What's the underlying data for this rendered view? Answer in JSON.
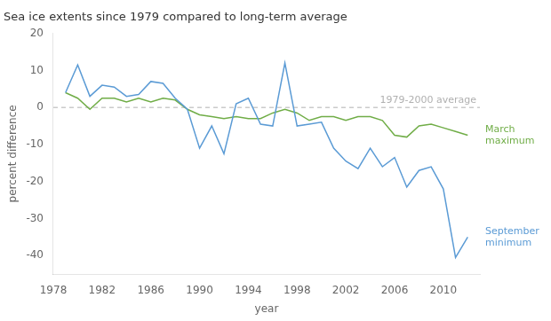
{
  "chart_data": {
    "type": "line",
    "title": "Sea ice extents since 1979 compared to long-term average",
    "xlabel": "year",
    "ylabel": "percent difference",
    "x": [
      1979,
      1980,
      1981,
      1982,
      1983,
      1984,
      1985,
      1986,
      1987,
      1988,
      1989,
      1990,
      1991,
      1992,
      1993,
      1994,
      1995,
      1996,
      1997,
      1998,
      1999,
      2000,
      2001,
      2002,
      2003,
      2004,
      2005,
      2006,
      2007,
      2008,
      2009,
      2010,
      2011,
      2012
    ],
    "series": [
      {
        "name": "September\nminimum",
        "color": "#5b9bd5",
        "values": [
          4.0,
          11.5,
          3.0,
          6.0,
          5.5,
          3.0,
          3.5,
          7.0,
          6.5,
          2.5,
          -0.5,
          -11.0,
          -5.0,
          -12.5,
          1.0,
          2.5,
          -4.5,
          -5.0,
          12.0,
          -5.0,
          -4.5,
          -4.0,
          -11.0,
          -14.5,
          -16.5,
          -11.0,
          -16.0,
          -13.5,
          -21.5,
          -17.0,
          -16.0,
          -22.0,
          -40.5,
          -35.0
        ]
      },
      {
        "name": "March\nmaximum",
        "color": "#70ad47",
        "values": [
          4.0,
          2.5,
          -0.5,
          2.5,
          2.5,
          1.5,
          2.5,
          1.5,
          2.5,
          2.0,
          -0.5,
          -2.0,
          -2.5,
          -3.0,
          -2.5,
          -3.0,
          -3.0,
          -1.5,
          -0.5,
          -1.5,
          -3.5,
          -2.5,
          -2.5,
          -3.5,
          -2.5,
          -2.5,
          -3.5,
          -7.5,
          -8.0,
          -5.0,
          -4.5,
          -5.5,
          -6.5,
          -7.5
        ]
      }
    ],
    "xlim": [
      1978,
      2013
    ],
    "ylim": [
      -45,
      20
    ],
    "xticks": [
      1978,
      1982,
      1986,
      1990,
      1994,
      1998,
      2002,
      2006,
      2010
    ],
    "yticks": [
      -40,
      -30,
      -20,
      -10,
      0,
      10,
      20
    ],
    "grid": false,
    "annotations": [
      {
        "text": "1979-2000 average",
        "y": 0,
        "color": "#b0b0b0",
        "line_style": "dashed"
      }
    ]
  }
}
